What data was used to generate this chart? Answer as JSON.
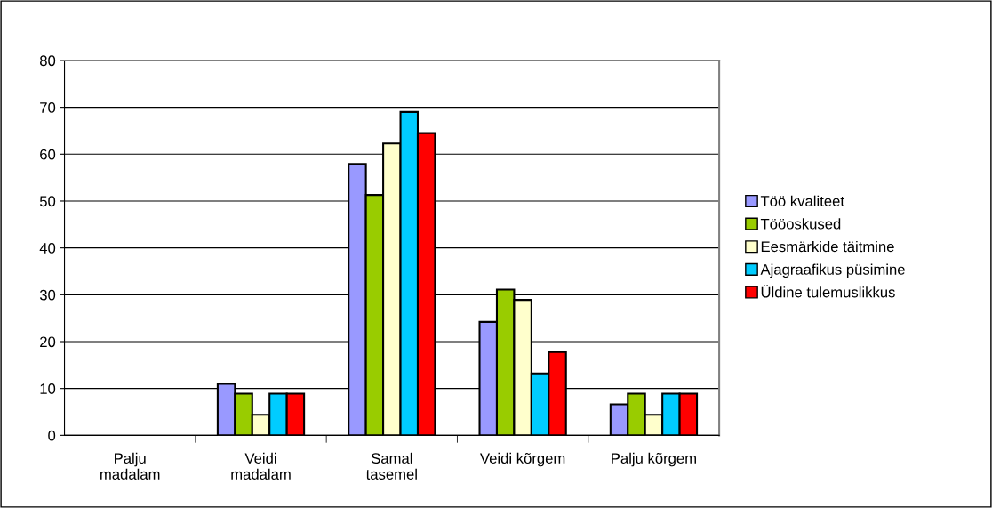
{
  "chart_data": {
    "type": "bar",
    "categories": [
      "Palju\nmadalam",
      "Veidi\nmadalam",
      "Samal\ntasemel",
      "Veidi kõrgem",
      "Palju kõrgem"
    ],
    "series": [
      {
        "name": "Töö kvaliteet",
        "color": "#9999ff",
        "values": [
          0,
          11.0,
          57.9,
          24.2,
          6.6
        ]
      },
      {
        "name": "Tööoskused",
        "color": "#99cc00",
        "values": [
          0,
          8.9,
          51.3,
          31.1,
          8.9
        ]
      },
      {
        "name": "Eesmärkide täitmine",
        "color": "#ffffcc",
        "values": [
          0,
          4.4,
          62.3,
          28.9,
          4.4
        ]
      },
      {
        "name": "Ajagraafikus püsimine",
        "color": "#00ccff",
        "values": [
          0,
          8.9,
          69.0,
          13.2,
          8.9
        ]
      },
      {
        "name": "Üldine tulemuslikkus",
        "color": "#ff0000",
        "values": [
          0,
          8.9,
          64.5,
          17.8,
          8.9
        ]
      }
    ],
    "ylim": [
      0,
      80
    ],
    "yticks": [
      0,
      10,
      20,
      30,
      40,
      50,
      60,
      70,
      80
    ],
    "grid": "y",
    "legend": "right"
  }
}
